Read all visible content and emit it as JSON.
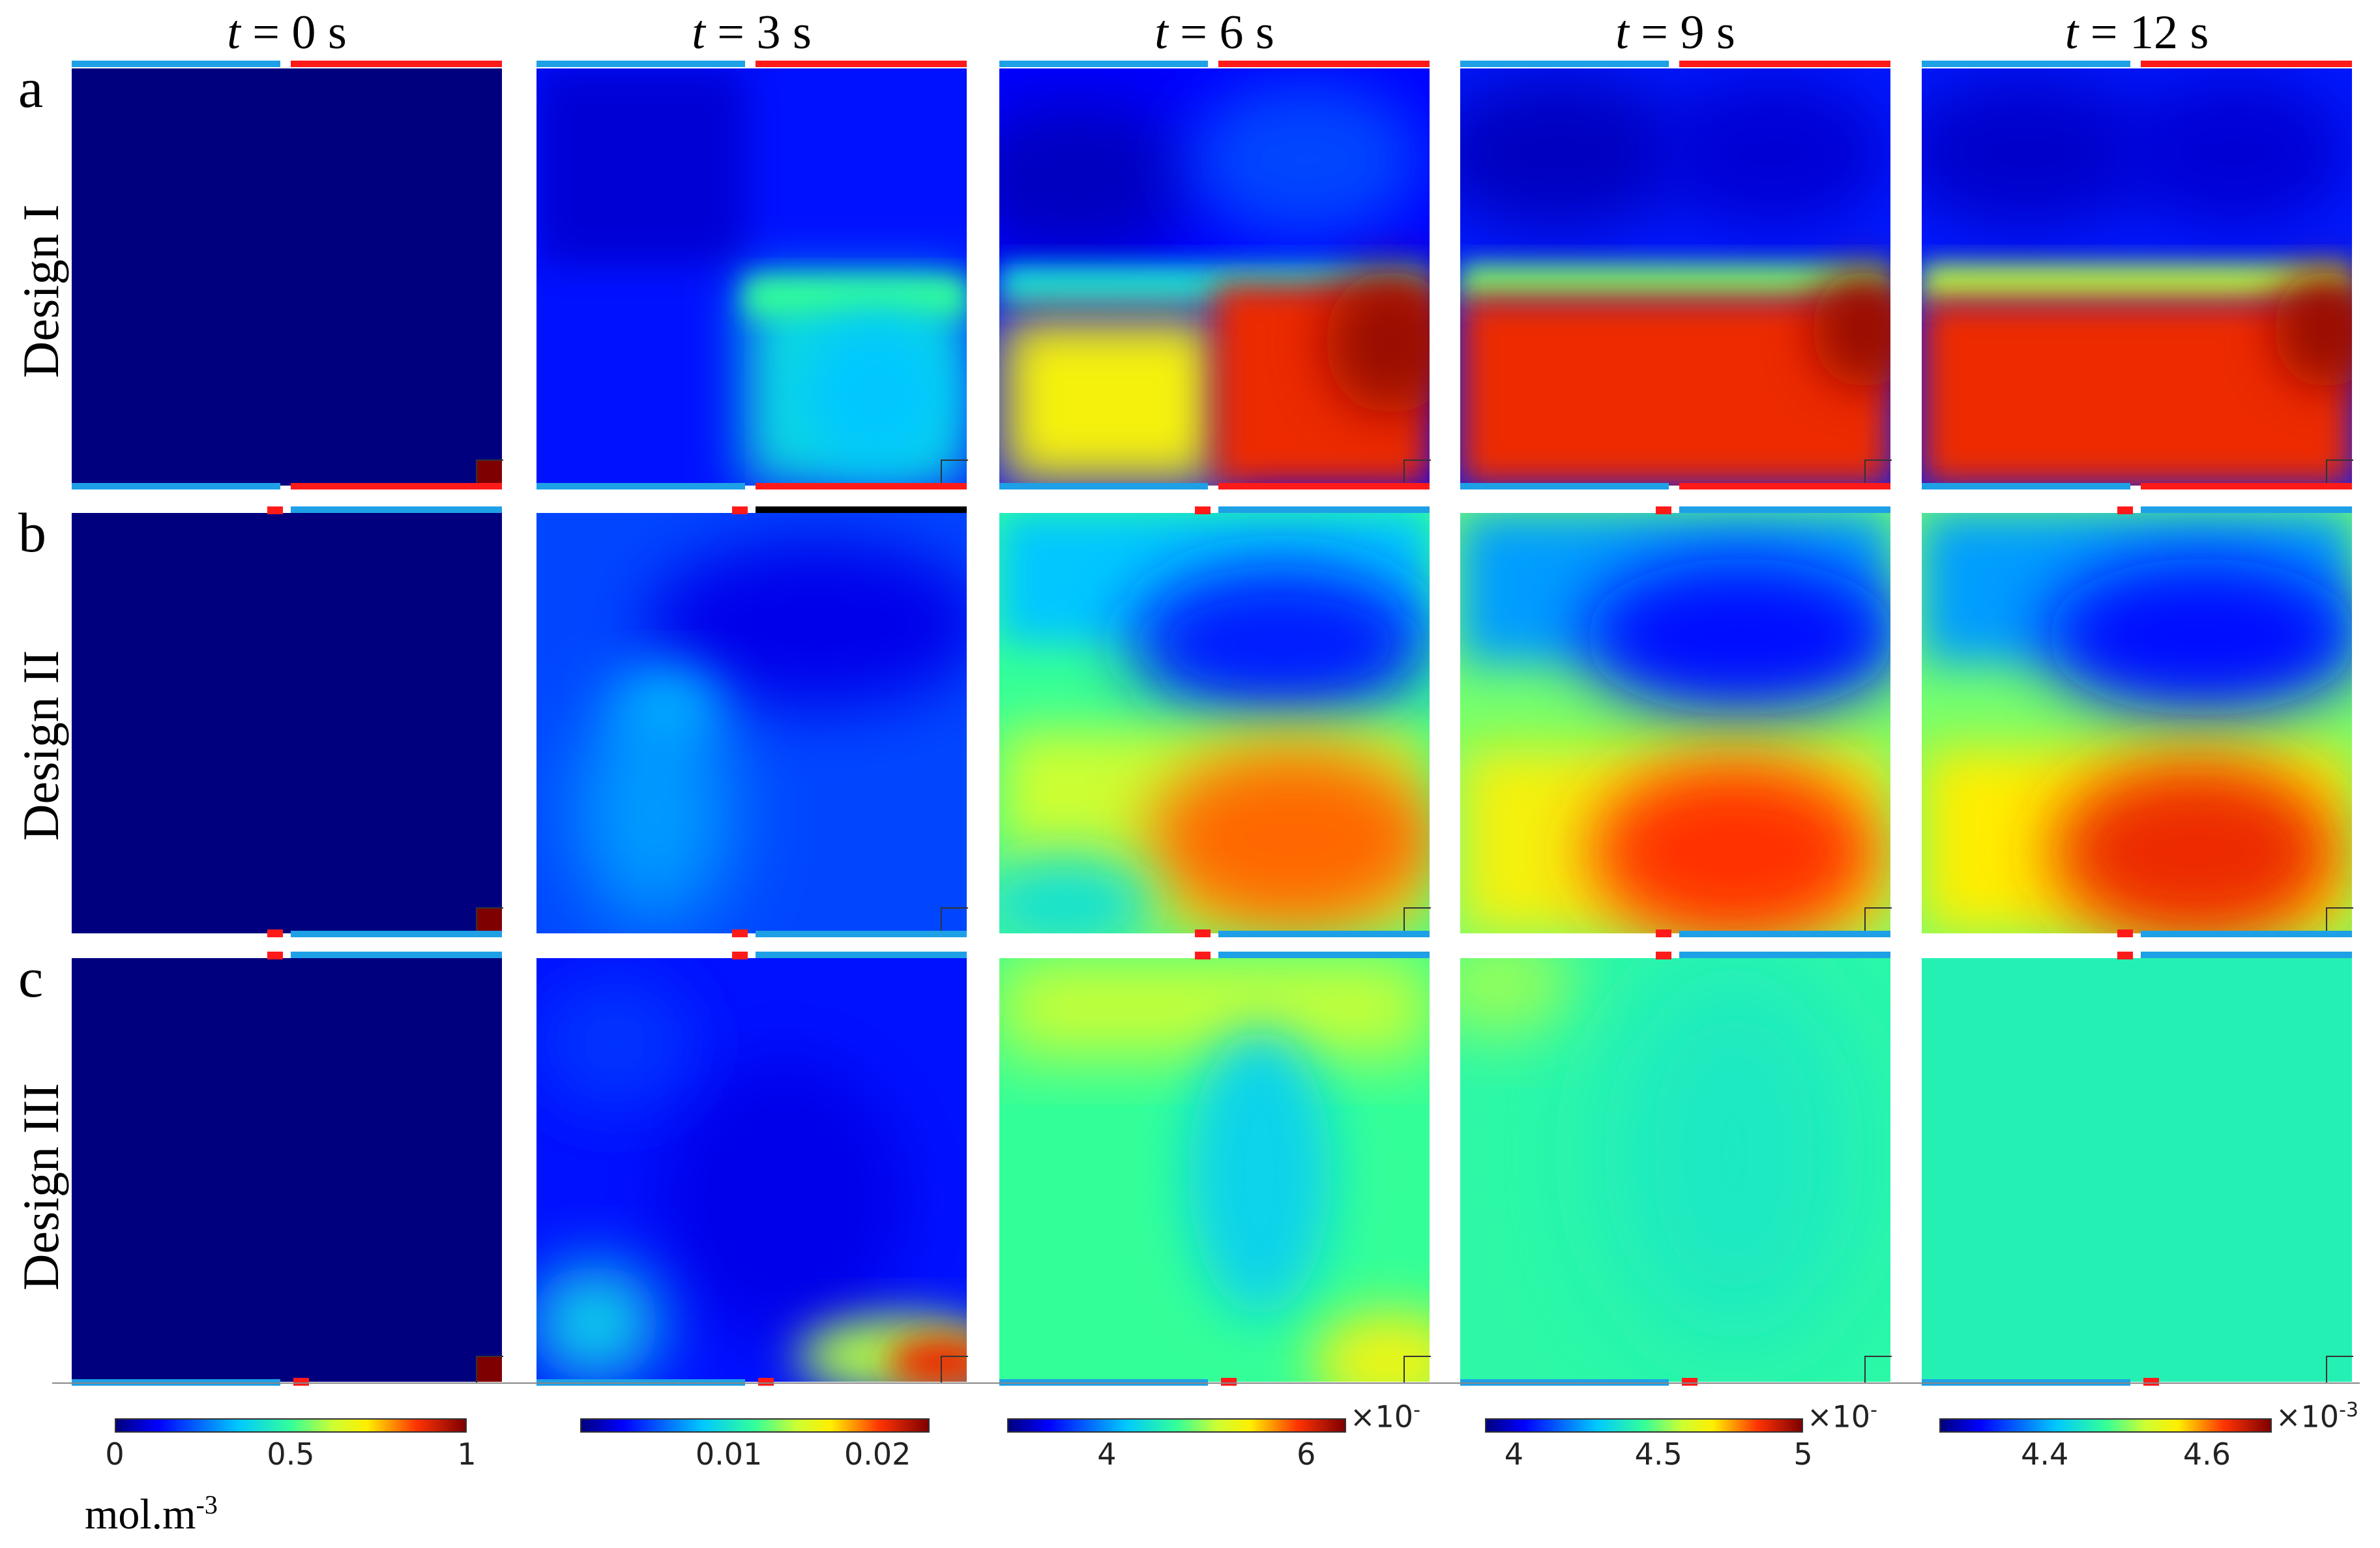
{
  "column_titles": [
    {
      "var": "t",
      "rest": " = 0 s"
    },
    {
      "var": "t",
      "rest": " = 3 s"
    },
    {
      "var": "t",
      "rest": " = 6 s"
    },
    {
      "var": "t",
      "rest": " = 9 s"
    },
    {
      "var": "t",
      "rest": " = 12 s"
    }
  ],
  "rows": [
    {
      "letter": "a",
      "label": "Design I"
    },
    {
      "letter": "b",
      "label": "Design II"
    },
    {
      "letter": "c",
      "label": "Design III"
    }
  ],
  "colorbars": [
    {
      "ticks": [
        "0",
        "0.5",
        "1"
      ],
      "tick_values": [
        0,
        0.5,
        1
      ],
      "range": [
        0,
        1
      ],
      "multiplier_base": "",
      "multiplier_exp": ""
    },
    {
      "ticks": [
        "0.01",
        "0.02"
      ],
      "tick_values": [
        0.01,
        0.02
      ],
      "range": [
        0,
        0.0235
      ],
      "multiplier_base": "",
      "multiplier_exp": ""
    },
    {
      "ticks": [
        "4",
        "6"
      ],
      "tick_values": [
        4,
        6
      ],
      "range": [
        3.0,
        6.4
      ],
      "multiplier_base": "×10",
      "multiplier_exp": "-"
    },
    {
      "ticks": [
        "4",
        "4.5",
        "5"
      ],
      "tick_values": [
        4,
        4.5,
        5
      ],
      "range": [
        3.9,
        5.0
      ],
      "multiplier_base": "×10",
      "multiplier_exp": "-"
    },
    {
      "ticks": [
        "4.4",
        "4.6"
      ],
      "tick_values": [
        4.4,
        4.6
      ],
      "range": [
        4.27,
        4.68
      ],
      "multiplier_base": "×10",
      "multiplier_exp": "-3"
    }
  ],
  "units": {
    "base": "mol.m",
    "exp": "-3"
  },
  "colormap": "jet",
  "colors": {
    "port_red": "#ff1a1a",
    "port_blue": "#1ea0e6",
    "background": "#ffffff"
  }
}
